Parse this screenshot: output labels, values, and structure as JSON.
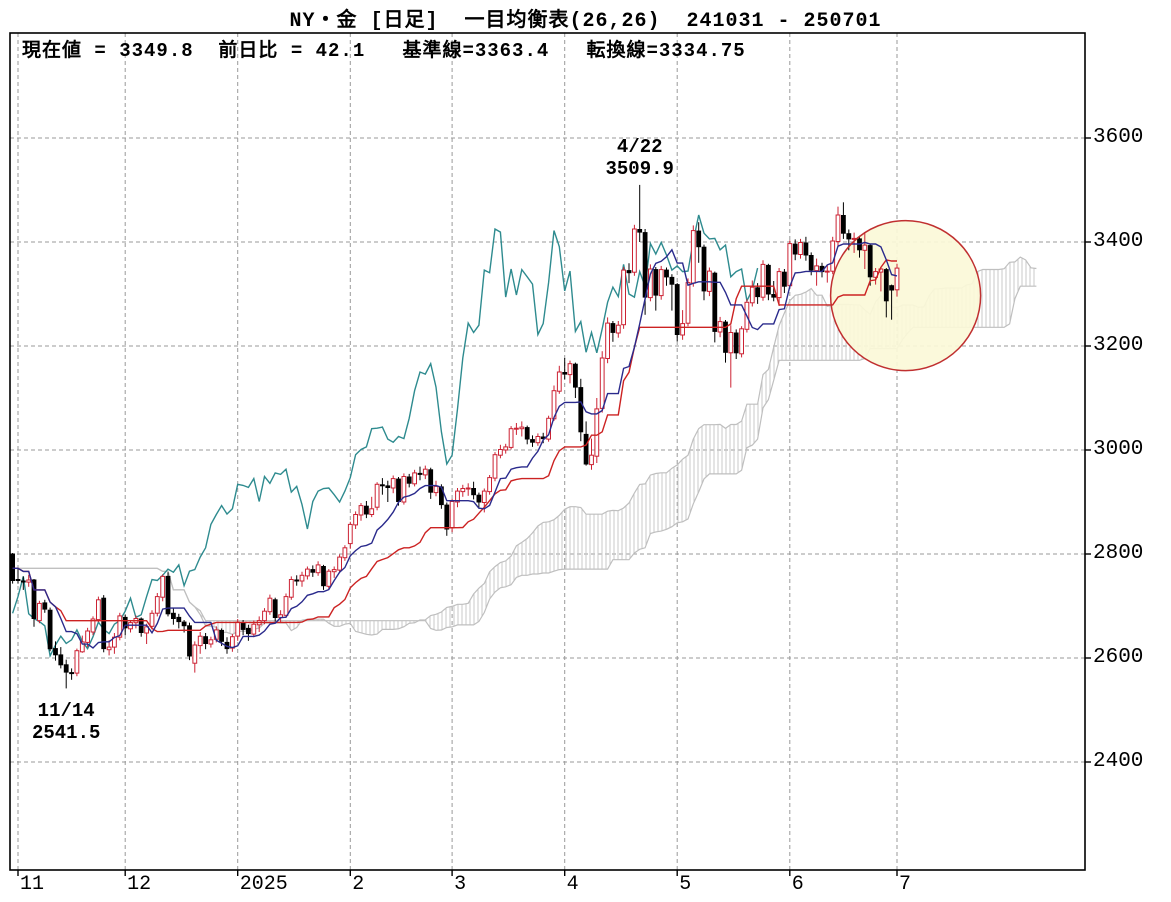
{
  "title": "NY・金 [日足]  一目均衡表(26,26)  241031 - 250701",
  "info_bar": {
    "text": "現在値 = 3349.8  前日比 = 42.1   基準線=3363.4   転換線=3334.75"
  },
  "chart_data": {
    "type": "candlestick",
    "subtype": "ichimoku",
    "instrument": "NY・金",
    "timeframe": "日足",
    "indicator": "一目均衡表(26,26)",
    "period_label": "241031 - 250701",
    "current": {
      "price": 3349.8,
      "change": 42.1,
      "kijun": 3363.4,
      "tenkan": 3334.75
    },
    "params": {
      "tenkan_period": 9,
      "kijun_period": 26,
      "displacement": 26,
      "senkou_b_period": 52
    },
    "ylim": [
      2400,
      3600
    ],
    "y_ticks": [
      3600,
      3400,
      3200,
      3000,
      2800,
      2600,
      2400
    ],
    "x_ticks": [
      {
        "label": "11",
        "bar": 1
      },
      {
        "label": "12",
        "bar": 21
      },
      {
        "label": "2025",
        "bar": 42
      },
      {
        "label": "2",
        "bar": 63
      },
      {
        "label": "3",
        "bar": 82
      },
      {
        "label": "4",
        "bar": 103
      },
      {
        "label": "5",
        "bar": 124
      },
      {
        "label": "6",
        "bar": 145
      },
      {
        "label": "7",
        "bar": 165
      }
    ],
    "grid": true,
    "legend": "none",
    "annotations": [
      {
        "label": "4/22",
        "value_label": "3509.9",
        "bar": 117,
        "value": 3509.9,
        "placement": "above"
      },
      {
        "label": "11/14",
        "value_label": "2541.5",
        "bar": 10,
        "value": 2541.5,
        "placement": "below"
      }
    ],
    "highlight_circle": {
      "center_bar": 166.6,
      "center_value": 3297,
      "radius_px": 75
    },
    "colors": {
      "up_candle": "#cc2233",
      "down_candle": "#000000",
      "tenkan_line": "#2a2a8c",
      "kijun_line": "#cc2222",
      "lagging_line": "#2e8b8f",
      "cloud": "#bfbfbf",
      "cloud_hatch": "#c9c9c9",
      "grid": "#9a9a9a",
      "frame": "#000000",
      "circle_stroke": "#c03030",
      "circle_fill": "#fbf8d8",
      "text": "#000000"
    },
    "ohlc": [
      [
        "10/31",
        2800,
        2802,
        2743,
        2749
      ],
      [
        "11/1",
        2751,
        2772,
        2743,
        2749
      ],
      [
        "11/4",
        2748,
        2757,
        2731,
        2746
      ],
      [
        "11/5",
        2746,
        2760,
        2737,
        2750
      ],
      [
        "11/6",
        2750,
        2752,
        2660,
        2676
      ],
      [
        "11/7",
        2672,
        2710,
        2667,
        2705
      ],
      [
        "11/8",
        2706,
        2712,
        2687,
        2694
      ],
      [
        "11/11",
        2692,
        2697,
        2613,
        2618
      ],
      [
        "11/12",
        2618,
        2632,
        2595,
        2606
      ],
      [
        "11/13",
        2606,
        2621,
        2580,
        2587
      ],
      [
        "11/14",
        2587,
        2597,
        2541.5,
        2573
      ],
      [
        "11/15",
        2572,
        2580,
        2558,
        2570
      ],
      [
        "11/18",
        2571,
        2618,
        2565,
        2614
      ],
      [
        "11/19",
        2612,
        2643,
        2610,
        2631
      ],
      [
        "11/20",
        2630,
        2658,
        2621,
        2652
      ],
      [
        "11/21",
        2650,
        2680,
        2644,
        2675
      ],
      [
        "11/22",
        2674,
        2718,
        2669,
        2712
      ],
      [
        "11/25",
        2715,
        2721,
        2611,
        2618
      ],
      [
        "11/26",
        2616,
        2634,
        2605,
        2621
      ],
      [
        "11/27",
        2621,
        2648,
        2608,
        2640
      ],
      [
        "11/29",
        2640,
        2687,
        2634,
        2681
      ],
      [
        "12/2",
        2678,
        2683,
        2644,
        2658
      ],
      [
        "12/3",
        2656,
        2672,
        2649,
        2668
      ],
      [
        "12/4",
        2668,
        2682,
        2657,
        2676
      ],
      [
        "12/5",
        2675,
        2678,
        2641,
        2649
      ],
      [
        "12/6",
        2648,
        2666,
        2627,
        2660
      ],
      [
        "12/9",
        2661,
        2692,
        2655,
        2686
      ],
      [
        "12/10",
        2686,
        2725,
        2680,
        2718
      ],
      [
        "12/11",
        2717,
        2761,
        2709,
        2757
      ],
      [
        "12/12",
        2757,
        2765,
        2680,
        2685
      ],
      [
        "12/13",
        2686,
        2696,
        2664,
        2676
      ],
      [
        "12/16",
        2678,
        2685,
        2657,
        2670
      ],
      [
        "12/17",
        2669,
        2673,
        2649,
        2662
      ],
      [
        "12/18",
        2662,
        2668,
        2596,
        2604
      ],
      [
        "12/19",
        2590,
        2632,
        2572,
        2625
      ],
      [
        "12/20",
        2624,
        2650,
        2608,
        2642
      ],
      [
        "12/23",
        2641,
        2648,
        2617,
        2628
      ],
      [
        "12/24",
        2627,
        2641,
        2620,
        2635
      ],
      [
        "12/26",
        2636,
        2661,
        2630,
        2654
      ],
      [
        "12/27",
        2653,
        2657,
        2623,
        2632
      ],
      [
        "12/30",
        2630,
        2640,
        2608,
        2618
      ],
      [
        "12/31",
        2619,
        2646,
        2612,
        2641
      ],
      [
        "1/2",
        2642,
        2675,
        2633,
        2669
      ],
      [
        "1/3",
        2668,
        2673,
        2644,
        2655
      ],
      [
        "1/6",
        2657,
        2664,
        2633,
        2647
      ],
      [
        "1/7",
        2646,
        2672,
        2640,
        2665
      ],
      [
        "1/8",
        2664,
        2680,
        2650,
        2672
      ],
      [
        "1/9",
        2672,
        2696,
        2665,
        2690
      ],
      [
        "1/10",
        2689,
        2722,
        2683,
        2715
      ],
      [
        "1/13",
        2712,
        2716,
        2670,
        2678
      ],
      [
        "1/14",
        2678,
        2692,
        2669,
        2683
      ],
      [
        "1/15",
        2682,
        2724,
        2677,
        2718
      ],
      [
        "1/16",
        2717,
        2757,
        2712,
        2751
      ],
      [
        "1/17",
        2750,
        2759,
        2739,
        2749
      ],
      [
        "1/21",
        2748,
        2766,
        2737,
        2759
      ],
      [
        "1/22",
        2758,
        2776,
        2751,
        2771
      ],
      [
        "1/23",
        2770,
        2778,
        2756,
        2765
      ],
      [
        "1/24",
        2764,
        2786,
        2758,
        2779
      ],
      [
        "1/27",
        2776,
        2779,
        2731,
        2739
      ],
      [
        "1/28",
        2738,
        2771,
        2732,
        2767
      ],
      [
        "1/29",
        2766,
        2776,
        2754,
        2770
      ],
      [
        "1/30",
        2769,
        2799,
        2764,
        2794
      ],
      [
        "1/31",
        2793,
        2817,
        2787,
        2812
      ],
      [
        "2/3",
        2820,
        2862,
        2810,
        2857
      ],
      [
        "2/4",
        2856,
        2882,
        2848,
        2876
      ],
      [
        "2/5",
        2875,
        2898,
        2864,
        2893
      ],
      [
        "2/6",
        2892,
        2902,
        2869,
        2877
      ],
      [
        "2/7",
        2876,
        2910,
        2871,
        2887
      ],
      [
        "2/10",
        2890,
        2938,
        2884,
        2934
      ],
      [
        "2/11",
        2933,
        2946,
        2914,
        2932
      ],
      [
        "2/12",
        2931,
        2941,
        2900,
        2928
      ],
      [
        "2/13",
        2927,
        2951,
        2917,
        2945
      ],
      [
        "2/14",
        2944,
        2948,
        2893,
        2901
      ],
      [
        "2/18",
        2900,
        2955,
        2895,
        2949
      ],
      [
        "2/19",
        2948,
        2954,
        2928,
        2936
      ],
      [
        "2/20",
        2935,
        2962,
        2930,
        2956
      ],
      [
        "2/21",
        2955,
        2968,
        2942,
        2953
      ],
      [
        "2/24",
        2952,
        2970,
        2944,
        2963
      ],
      [
        "2/25",
        2962,
        2966,
        2906,
        2919
      ],
      [
        "2/26",
        2918,
        2941,
        2911,
        2930
      ],
      [
        "2/27",
        2929,
        2934,
        2887,
        2895
      ],
      [
        "2/28",
        2894,
        2899,
        2835,
        2848
      ],
      [
        "3/3",
        2850,
        2906,
        2842,
        2901
      ],
      [
        "3/4",
        2900,
        2927,
        2890,
        2921
      ],
      [
        "3/5",
        2920,
        2933,
        2910,
        2926
      ],
      [
        "3/6",
        2925,
        2936,
        2912,
        2927
      ],
      [
        "3/7",
        2926,
        2939,
        2905,
        2914
      ],
      [
        "3/10",
        2913,
        2918,
        2889,
        2900
      ],
      [
        "3/11",
        2899,
        2926,
        2880,
        2921
      ],
      [
        "3/12",
        2920,
        2952,
        2914,
        2947
      ],
      [
        "3/13",
        2946,
        2996,
        2940,
        2991
      ],
      [
        "3/14",
        2990,
        3010,
        2984,
        3001
      ],
      [
        "3/17",
        3000,
        3012,
        2993,
        3006
      ],
      [
        "3/18",
        3005,
        3046,
        3001,
        3041
      ],
      [
        "3/19",
        3040,
        3052,
        3029,
        3042
      ],
      [
        "3/20",
        3041,
        3055,
        3026,
        3044
      ],
      [
        "3/21",
        3043,
        3047,
        3011,
        3021
      ],
      [
        "3/24",
        3020,
        3028,
        3006,
        3015
      ],
      [
        "3/25",
        3014,
        3032,
        3008,
        3026
      ],
      [
        "3/26",
        3025,
        3033,
        3013,
        3022
      ],
      [
        "3/27",
        3021,
        3066,
        3016,
        3061
      ],
      [
        "3/28",
        3060,
        3124,
        3056,
        3114
      ],
      [
        "3/31",
        3113,
        3162,
        3108,
        3150
      ],
      [
        "4/1",
        3149,
        3177,
        3136,
        3146
      ],
      [
        "4/2",
        3145,
        3172,
        3128,
        3166
      ],
      [
        "4/3",
        3165,
        3168,
        3100,
        3121
      ],
      [
        "4/4",
        3120,
        3137,
        3017,
        3035
      ],
      [
        "4/7",
        3030,
        3055,
        2970,
        2973
      ],
      [
        "4/8",
        2972,
        3022,
        2962,
        2990
      ],
      [
        "4/9",
        2988,
        3100,
        2975,
        3079
      ],
      [
        "4/10",
        3080,
        3190,
        3072,
        3177
      ],
      [
        "4/11",
        3176,
        3255,
        3167,
        3244
      ],
      [
        "4/14",
        3243,
        3248,
        3208,
        3226
      ],
      [
        "4/15",
        3225,
        3248,
        3216,
        3240
      ],
      [
        "4/16",
        3241,
        3352,
        3233,
        3346
      ],
      [
        "4/17",
        3345,
        3359,
        3321,
        3341
      ],
      [
        "4/21",
        3342,
        3433,
        3335,
        3425
      ],
      [
        "4/22",
        3424,
        3509.9,
        3400,
        3419
      ],
      [
        "4/23",
        3418,
        3425,
        3260,
        3294
      ],
      [
        "4/24",
        3293,
        3357,
        3286,
        3348
      ],
      [
        "4/25",
        3347,
        3352,
        3268,
        3298
      ],
      [
        "4/28",
        3297,
        3354,
        3289,
        3347
      ],
      [
        "4/29",
        3346,
        3351,
        3316,
        3333
      ],
      [
        "4/30",
        3332,
        3338,
        3268,
        3319
      ],
      [
        "5/1",
        3318,
        3321,
        3209,
        3222
      ],
      [
        "5/2",
        3221,
        3269,
        3212,
        3243
      ],
      [
        "5/5",
        3244,
        3330,
        3238,
        3322
      ],
      [
        "5/6",
        3321,
        3432,
        3314,
        3422
      ],
      [
        "5/7",
        3421,
        3438,
        3360,
        3391
      ],
      [
        "5/8",
        3390,
        3395,
        3288,
        3306
      ],
      [
        "5/9",
        3305,
        3351,
        3296,
        3344
      ],
      [
        "5/12",
        3340,
        3343,
        3207,
        3228
      ],
      [
        "5/13",
        3227,
        3256,
        3217,
        3247
      ],
      [
        "5/14",
        3246,
        3250,
        3168,
        3188
      ],
      [
        "5/15",
        3187,
        3240,
        3120,
        3226
      ],
      [
        "5/16",
        3225,
        3232,
        3175,
        3187
      ],
      [
        "5/19",
        3185,
        3238,
        3178,
        3233
      ],
      [
        "5/20",
        3232,
        3290,
        3226,
        3284
      ],
      [
        "5/21",
        3283,
        3326,
        3276,
        3313
      ],
      [
        "5/22",
        3312,
        3321,
        3281,
        3295
      ],
      [
        "5/23",
        3294,
        3365,
        3287,
        3357
      ],
      [
        "5/27",
        3355,
        3358,
        3288,
        3300
      ],
      [
        "5/28",
        3299,
        3325,
        3286,
        3294
      ],
      [
        "5/29",
        3293,
        3350,
        3277,
        3343
      ],
      [
        "5/30",
        3342,
        3348,
        3302,
        3315
      ],
      [
        "6/2",
        3316,
        3403,
        3310,
        3397
      ],
      [
        "6/3",
        3396,
        3405,
        3365,
        3377
      ],
      [
        "6/4",
        3376,
        3406,
        3368,
        3399
      ],
      [
        "6/5",
        3398,
        3410,
        3364,
        3375
      ],
      [
        "6/6",
        3374,
        3380,
        3336,
        3346
      ],
      [
        "6/9",
        3345,
        3368,
        3316,
        3354
      ],
      [
        "6/10",
        3353,
        3360,
        3332,
        3343
      ],
      [
        "6/11",
        3342,
        3356,
        3322,
        3344
      ],
      [
        "6/12",
        3344,
        3410,
        3338,
        3402
      ],
      [
        "6/13",
        3401,
        3468,
        3393,
        3452
      ],
      [
        "6/16",
        3451,
        3476.3,
        3406,
        3417
      ],
      [
        "6/17",
        3416,
        3424,
        3384,
        3406
      ],
      [
        "6/18",
        3405,
        3418,
        3379,
        3407
      ],
      [
        "6/20",
        3406,
        3412,
        3370,
        3385
      ],
      [
        "6/23",
        3384,
        3419,
        3348,
        3394
      ],
      [
        "6/24",
        3393,
        3396,
        3316,
        3333
      ],
      [
        "6/25",
        3332,
        3350,
        3318,
        3343
      ],
      [
        "6/26",
        3342,
        3352,
        3305,
        3348
      ],
      [
        "6/27",
        3347,
        3350,
        3255,
        3287
      ],
      [
        "6/30",
        3316,
        3318,
        3250.5,
        3307.7
      ],
      [
        "7/1",
        3308,
        3358,
        3295,
        3349.8
      ]
    ]
  }
}
